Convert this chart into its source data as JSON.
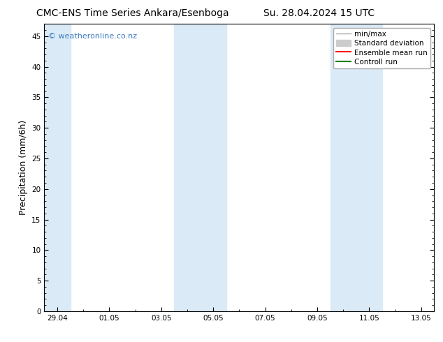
{
  "title": "CMC-ENS Time Series Ankara/Esenboga",
  "title_right": "Su. 28.04.2024 15 UTC",
  "ylabel": "Precipitation (mm/6h)",
  "xlabel": "",
  "watermark": "© weatheronline.co.nz",
  "ylim": [
    0,
    47
  ],
  "yticks": [
    0,
    5,
    10,
    15,
    20,
    25,
    30,
    35,
    40,
    45
  ],
  "xtick_labels": [
    "29.04",
    "01.05",
    "03.05",
    "05.05",
    "07.05",
    "09.05",
    "11.05",
    "13.05"
  ],
  "xmin": -0.5,
  "xmax": 14.5,
  "xtick_positions": [
    0,
    2,
    4,
    6,
    8,
    10,
    12,
    14
  ],
  "shaded_bands": [
    {
      "xmin": -0.5,
      "xmax": 0.5,
      "color": "#daeaf6"
    },
    {
      "xmin": 4.5,
      "xmax": 6.5,
      "color": "#daeaf6"
    },
    {
      "xmin": 10.5,
      "xmax": 12.5,
      "color": "#daeaf6"
    }
  ],
  "legend_items": [
    {
      "label": "min/max",
      "color": "#aaaaaa",
      "lw": 1
    },
    {
      "label": "Standard deviation",
      "color": "#cccccc",
      "lw": 6
    },
    {
      "label": "Ensemble mean run",
      "color": "red",
      "lw": 1.5
    },
    {
      "label": "Controll run",
      "color": "green",
      "lw": 1.5
    }
  ],
  "bg_color": "#ffffff",
  "plot_bg_color": "#ffffff",
  "watermark_color": "#3a7abf",
  "title_fontsize": 10,
  "tick_fontsize": 7.5,
  "ylabel_fontsize": 9,
  "legend_fontsize": 7.5
}
